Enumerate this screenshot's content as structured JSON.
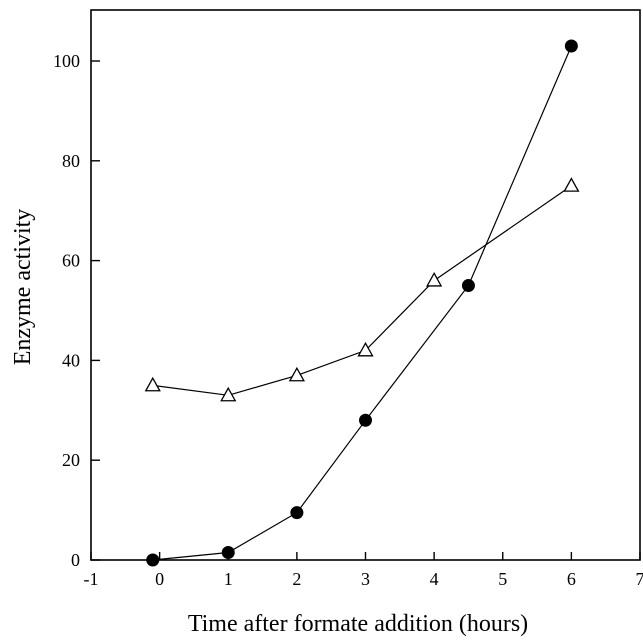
{
  "chart_data": {
    "type": "line",
    "title": "",
    "xlabel": "Time after formate addition (hours)",
    "ylabel": "Enzyme activity",
    "xlim": [
      -1,
      7
    ],
    "ylim": [
      0,
      110
    ],
    "x_ticks": [
      -1,
      0,
      1,
      2,
      3,
      4,
      5,
      6,
      7
    ],
    "y_ticks": [
      0,
      20,
      40,
      60,
      80,
      100
    ],
    "x_tick_labels": [
      "-1",
      "0",
      "1",
      "2",
      "3",
      "4",
      "5",
      "6",
      "7"
    ],
    "y_tick_labels": [
      "0",
      "20",
      "40",
      "60",
      "80",
      "100"
    ],
    "grid": false,
    "series": [
      {
        "marker": "open-triangle",
        "x": [
          -0.1,
          1,
          2,
          3,
          4,
          6
        ],
        "y": [
          35,
          33,
          37,
          42,
          56,
          75
        ]
      },
      {
        "marker": "filled-circle",
        "x": [
          -0.1,
          1,
          2,
          3,
          4.5,
          6
        ],
        "y": [
          0,
          1.5,
          9.5,
          28,
          55,
          103
        ]
      }
    ]
  }
}
